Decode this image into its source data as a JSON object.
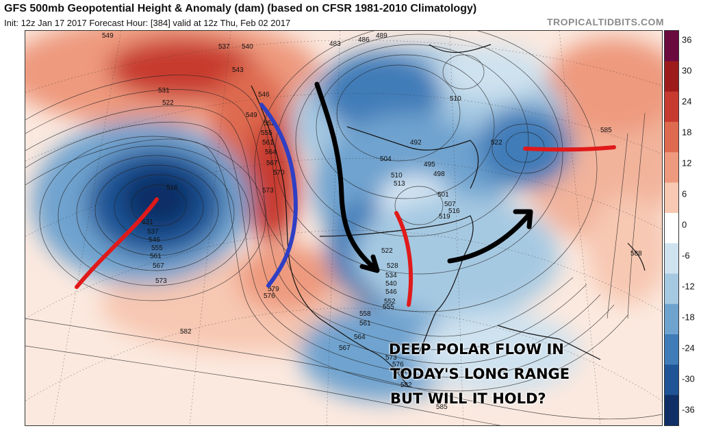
{
  "header": {
    "title": "GFS 500mb Geopotential Height & Anomaly (dam) (based on CFSR 1981-2010 Climatology)",
    "subtitle": "Init: 12z Jan 17 2017   Forecast Hour: [384]   valid at 12z Thu, Feb 02 2017",
    "brand": "TROPICALTIDBITS.COM"
  },
  "colorbar": {
    "ticks": [
      "36",
      "30",
      "24",
      "18",
      "12",
      "6",
      "0",
      "-6",
      "-12",
      "-18",
      "-24",
      "-30",
      "-36"
    ],
    "colors": [
      "#6a0a3e",
      "#9e1b1b",
      "#c73a2f",
      "#de6a50",
      "#ee9a7e",
      "#f7c8b2",
      "#ffffff",
      "#cfe2ef",
      "#a6c9e2",
      "#6fa3cf",
      "#3f7cb8",
      "#1f5496",
      "#0f2f66"
    ]
  },
  "contour_labels": [
    {
      "text": "549"
    },
    {
      "text": "537"
    },
    {
      "text": "540"
    },
    {
      "text": "531"
    },
    {
      "text": "522"
    },
    {
      "text": "543"
    },
    {
      "text": "546"
    },
    {
      "text": "549"
    },
    {
      "text": "552"
    },
    {
      "text": "555"
    },
    {
      "text": "561"
    },
    {
      "text": "564"
    },
    {
      "text": "567"
    },
    {
      "text": "570"
    },
    {
      "text": "573"
    },
    {
      "text": "516"
    },
    {
      "text": "531"
    },
    {
      "text": "537"
    },
    {
      "text": "546"
    },
    {
      "text": "555"
    },
    {
      "text": "561"
    },
    {
      "text": "567"
    },
    {
      "text": "573"
    },
    {
      "text": "582"
    },
    {
      "text": "576"
    },
    {
      "text": "579"
    },
    {
      "text": "489"
    },
    {
      "text": "483"
    },
    {
      "text": "486"
    },
    {
      "text": "510"
    },
    {
      "text": "492"
    },
    {
      "text": "504"
    },
    {
      "text": "495"
    },
    {
      "text": "498"
    },
    {
      "text": "510"
    },
    {
      "text": "513"
    },
    {
      "text": "501"
    },
    {
      "text": "507"
    },
    {
      "text": "516"
    },
    {
      "text": "519"
    },
    {
      "text": "522"
    },
    {
      "text": "522"
    },
    {
      "text": "528"
    },
    {
      "text": "534"
    },
    {
      "text": "540"
    },
    {
      "text": "546"
    },
    {
      "text": "552"
    },
    {
      "text": "555"
    },
    {
      "text": "558"
    },
    {
      "text": "561"
    },
    {
      "text": "564"
    },
    {
      "text": "567"
    },
    {
      "text": "573"
    },
    {
      "text": "576"
    },
    {
      "text": "579"
    },
    {
      "text": "582"
    },
    {
      "text": "585"
    },
    {
      "text": "585"
    },
    {
      "text": "588"
    }
  ],
  "annotation": {
    "lines": [
      "DEEP POLAR FLOW IN",
      "TODAY'S LONG RANGE",
      "BUT WILL IT HOLD?"
    ],
    "ridge_color": "#2f3fc4",
    "trough_color": "#e01a1a",
    "flow_color": "#000000"
  }
}
